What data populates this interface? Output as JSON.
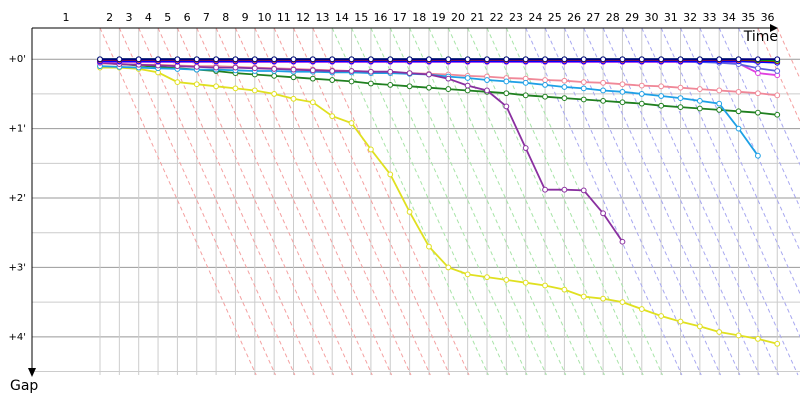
{
  "chart_data": {
    "type": "line",
    "xlabel": "Time",
    "ylabel": "Gap",
    "categories": [
      "1",
      "2",
      "3",
      "4",
      "5",
      "6",
      "7",
      "8",
      "9",
      "10",
      "11",
      "12",
      "13",
      "14",
      "15",
      "16",
      "17",
      "18",
      "19",
      "20",
      "21",
      "22",
      "23",
      "24",
      "25",
      "26",
      "27",
      "28",
      "29",
      "30",
      "31",
      "32",
      "33",
      "34",
      "35",
      "36"
    ],
    "ylim": [
      -0.45,
      4.55
    ],
    "yticks": [
      {
        "value": 0,
        "label": "+0'"
      },
      {
        "value": 1,
        "label": "+1'"
      },
      {
        "value": 2,
        "label": "+2'"
      },
      {
        "value": 3,
        "label": "+3'"
      },
      {
        "value": 4,
        "label": "+4'"
      }
    ],
    "yminorticks": [
      0.5,
      1.5,
      2.5,
      3.5,
      4.5
    ],
    "grid": true,
    "series": [
      {
        "color": "#e0e020",
        "values": [
          0.12,
          0.12,
          0.14,
          0.19,
          0.33,
          0.36,
          0.39,
          0.42,
          0.45,
          0.5,
          0.57,
          0.62,
          0.82,
          0.92,
          1.3,
          1.66,
          2.2,
          2.7,
          3.0,
          3.1,
          3.14,
          3.18,
          3.22,
          3.26,
          3.32,
          3.42,
          3.45,
          3.5,
          3.6,
          3.7,
          3.78,
          3.85,
          3.93,
          3.98,
          4.03,
          4.1
        ]
      },
      {
        "color": "#208020",
        "values": [
          0.05,
          0.07,
          0.09,
          0.11,
          0.13,
          0.15,
          0.17,
          0.2,
          0.22,
          0.24,
          0.26,
          0.28,
          0.3,
          0.32,
          0.35,
          0.37,
          0.39,
          0.41,
          0.43,
          0.45,
          0.47,
          0.49,
          0.52,
          0.54,
          0.56,
          0.58,
          0.6,
          0.62,
          0.64,
          0.67,
          0.69,
          0.71,
          0.73,
          0.75,
          0.77,
          0.8
        ]
      },
      {
        "color": "#f08898",
        "values": [
          0.06,
          0.07,
          0.08,
          0.08,
          0.09,
          0.1,
          0.1,
          0.11,
          0.12,
          0.13,
          0.14,
          0.15,
          0.16,
          0.17,
          0.18,
          0.19,
          0.2,
          0.21,
          0.22,
          0.24,
          0.25,
          0.27,
          0.28,
          0.3,
          0.31,
          0.33,
          0.34,
          0.36,
          0.38,
          0.39,
          0.41,
          0.43,
          0.45,
          0.47,
          0.49,
          0.52
        ]
      },
      {
        "color": "#1ea0e6",
        "values": [
          0.1,
          0.11,
          0.12,
          0.13,
          0.14,
          0.15,
          0.15,
          0.16,
          0.17,
          0.17,
          0.18,
          0.18,
          0.19,
          0.19,
          0.2,
          0.2,
          0.21,
          0.22,
          0.25,
          0.27,
          0.3,
          0.32,
          0.34,
          0.37,
          0.4,
          0.42,
          0.45,
          0.47,
          0.5,
          0.53,
          0.56,
          0.6,
          0.64,
          1.0,
          1.39,
          null
        ]
      },
      {
        "color": "#8a30a0",
        "values": [
          0.05,
          0.07,
          0.08,
          0.09,
          0.1,
          0.11,
          0.12,
          0.12,
          0.13,
          0.14,
          0.15,
          0.16,
          0.17,
          0.17,
          0.18,
          0.18,
          0.2,
          0.22,
          0.28,
          0.38,
          0.45,
          0.68,
          1.28,
          1.88,
          1.88,
          1.89,
          2.22,
          2.63,
          null,
          null,
          null,
          null,
          null,
          null,
          null,
          null
        ]
      },
      {
        "color": "#e040e0",
        "values": [
          0.04,
          0.04,
          0.04,
          0.04,
          0.04,
          0.04,
          0.04,
          0.04,
          0.04,
          0.04,
          0.04,
          0.04,
          0.04,
          0.04,
          0.04,
          0.04,
          0.04,
          0.04,
          0.04,
          0.04,
          0.04,
          0.04,
          0.04,
          0.04,
          0.04,
          0.04,
          0.04,
          0.04,
          0.04,
          0.04,
          0.04,
          0.04,
          0.04,
          0.06,
          0.2,
          0.23
        ]
      },
      {
        "color": "#6060e0",
        "values": [
          0.02,
          0.02,
          0.02,
          0.02,
          0.02,
          0.02,
          0.02,
          0.02,
          0.02,
          0.02,
          0.02,
          0.02,
          0.02,
          0.02,
          0.02,
          0.02,
          0.02,
          0.02,
          0.02,
          0.02,
          0.02,
          0.02,
          0.02,
          0.02,
          0.02,
          0.02,
          0.02,
          0.02,
          0.02,
          0.02,
          0.03,
          0.04,
          0.05,
          0.07,
          0.13,
          0.17
        ]
      },
      {
        "color": "#0000ff",
        "values": [
          0.03,
          0.03,
          0.03,
          0.03,
          0.03,
          0.03,
          0.03,
          0.03,
          0.03,
          0.03,
          0.03,
          0.03,
          0.03,
          0.03,
          0.03,
          0.03,
          0.03,
          0.03,
          0.03,
          0.03,
          0.03,
          0.03,
          0.03,
          0.03,
          0.03,
          0.03,
          0.03,
          0.03,
          0.03,
          0.03,
          0.03,
          0.03,
          0.03,
          0.03,
          0.04,
          0.05
        ]
      },
      {
        "color": "#e00000",
        "values": [
          0.01,
          0.01,
          0.01,
          0.01,
          0.01,
          0.01,
          0.01,
          0.01,
          0.01,
          0.01,
          0.01,
          0.01,
          0.01,
          0.01,
          0.01,
          0.01,
          0.01,
          0.01,
          0.01,
          0.01,
          0.01,
          0.01,
          0.01,
          0.01,
          0.01,
          0.01,
          0.01,
          0.01,
          0.01,
          0.01,
          0.01,
          0.01,
          0.01,
          0.01,
          0.02,
          0.03
        ]
      },
      {
        "color": "#00b000",
        "values": [
          0.0,
          0.0,
          0.0,
          0.0,
          0.0,
          0.0,
          0.0,
          0.0,
          0.0,
          0.0,
          0.0,
          0.0,
          0.0,
          0.0,
          0.0,
          0.0,
          0.0,
          0.0,
          0.0,
          0.0,
          0.0,
          0.0,
          0.0,
          0.0,
          0.0,
          0.0,
          0.0,
          0.0,
          0.0,
          0.0,
          0.0,
          0.0,
          0.0,
          0.0,
          0.01,
          0.02
        ]
      },
      {
        "color": "#00007f",
        "values": [
          0.0,
          0.0,
          0.0,
          0.0,
          0.0,
          0.0,
          0.0,
          0.0,
          0.0,
          0.0,
          0.0,
          0.0,
          0.0,
          0.0,
          0.0,
          0.0,
          0.0,
          0.0,
          0.0,
          0.0,
          0.0,
          0.0,
          0.0,
          0.0,
          0.0,
          0.0,
          0.0,
          0.0,
          0.0,
          0.0,
          0.0,
          0.0,
          0.0,
          0.0,
          0.0,
          0.0
        ]
      }
    ]
  }
}
